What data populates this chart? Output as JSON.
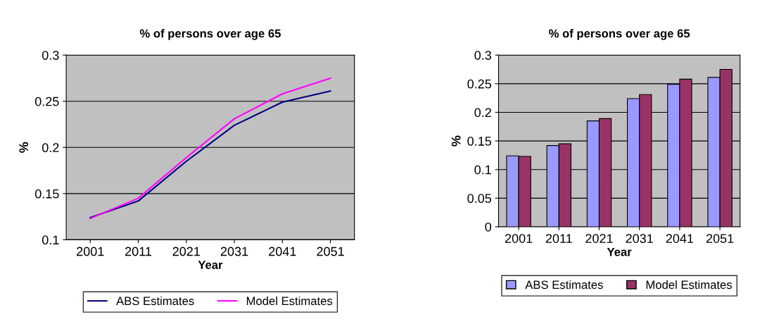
{
  "chart_data": [
    {
      "type": "line",
      "title": "% of persons over age 65",
      "xlabel": "Year",
      "ylabel": "%",
      "categories": [
        "2001",
        "2011",
        "2021",
        "2031",
        "2041",
        "2051"
      ],
      "series": [
        {
          "name": "ABS Estimates",
          "color": "#000080",
          "values": [
            0.124,
            0.142,
            0.185,
            0.224,
            0.249,
            0.261
          ]
        },
        {
          "name": "Model Estimates",
          "color": "#ff00ff",
          "values": [
            0.123,
            0.145,
            0.189,
            0.231,
            0.258,
            0.275
          ]
        }
      ],
      "ylim": [
        0.1,
        0.3
      ],
      "yticks": [
        0.1,
        0.15,
        0.2,
        0.25,
        0.3
      ],
      "grid": "y",
      "legend": "bottom"
    },
    {
      "type": "bar",
      "title": "% of persons over age 65",
      "xlabel": "Year",
      "ylabel": "%",
      "categories": [
        "2001",
        "2011",
        "2021",
        "2031",
        "2041",
        "2051"
      ],
      "series": [
        {
          "name": "ABS Estimates",
          "color": "#9999ff",
          "values": [
            0.124,
            0.142,
            0.185,
            0.224,
            0.249,
            0.261
          ]
        },
        {
          "name": "Model Estimates",
          "color": "#993366",
          "values": [
            0.123,
            0.145,
            0.189,
            0.231,
            0.258,
            0.275
          ]
        }
      ],
      "ylim": [
        0,
        0.3
      ],
      "yticks": [
        0,
        0.05,
        0.1,
        0.15,
        0.2,
        0.25,
        0.3
      ],
      "grid": "y",
      "legend": "bottom"
    }
  ]
}
